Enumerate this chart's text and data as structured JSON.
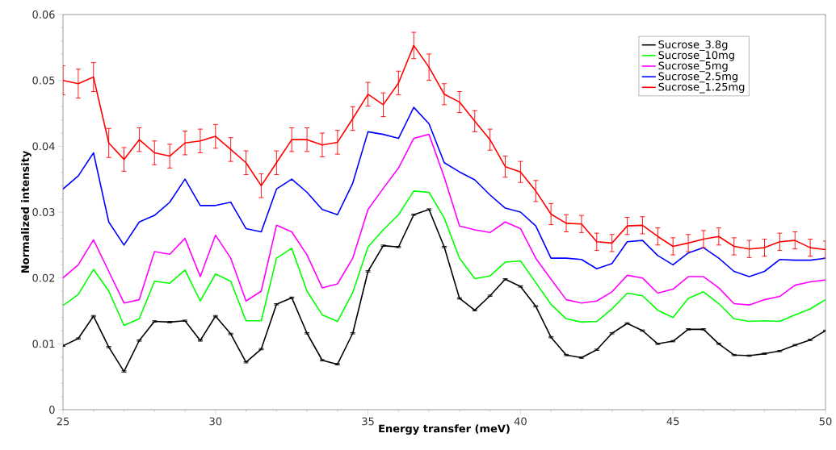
{
  "chart_data": {
    "type": "line",
    "xlabel": "Energy transfer (meV)",
    "ylabel": "Normalized intensity",
    "x": [
      25,
      25.5,
      26,
      26.5,
      27,
      27.5,
      28,
      28.5,
      29,
      29.5,
      30,
      30.5,
      31,
      31.5,
      32,
      32.5,
      33,
      33.5,
      34,
      34.5,
      35,
      35.5,
      36,
      36.5,
      37,
      37.5,
      38,
      38.5,
      39,
      39.5,
      40,
      40.5,
      41,
      41.5,
      42,
      42.5,
      43,
      43.5,
      44,
      44.5,
      45,
      45.5,
      46,
      46.5,
      47,
      47.5,
      48,
      48.5,
      49,
      49.5,
      50
    ],
    "xlim": [
      25,
      50
    ],
    "xticks": [
      25,
      30,
      35,
      40,
      45,
      50
    ],
    "ylim": [
      0,
      0.06
    ],
    "yticks": [
      0,
      0.01,
      0.02,
      0.03,
      0.04,
      0.05,
      0.06
    ],
    "grid": false,
    "legend": "top right",
    "marker": "none",
    "line_style": "solid",
    "series": [
      {
        "name": "Sucrose_3.8g",
        "color": "#000000",
        "values": [
          0.0097,
          0.0108,
          0.0142,
          0.0095,
          0.0058,
          0.0105,
          0.0134,
          0.0133,
          0.0135,
          0.0105,
          0.0142,
          0.0115,
          0.0072,
          0.0092,
          0.016,
          0.017,
          0.0116,
          0.0075,
          0.0069,
          0.0116,
          0.021,
          0.0249,
          0.0247,
          0.0296,
          0.0304,
          0.0247,
          0.0169,
          0.0151,
          0.0173,
          0.0198,
          0.0187,
          0.0157,
          0.011,
          0.0083,
          0.0079,
          0.0091,
          0.0116,
          0.0131,
          0.012,
          0.01,
          0.0104,
          0.0122,
          0.0122,
          0.01,
          0.0083,
          0.0082,
          0.0085,
          0.0089,
          0.0098,
          0.0106,
          0.012
        ],
        "errors": [
          0.0001,
          0.0001,
          0.0001,
          0.0001,
          0.0001,
          0.0001,
          0.0001,
          0.0001,
          0.0001,
          0.0001,
          0.0001,
          0.0001,
          0.0001,
          0.0001,
          0.0001,
          0.0001,
          0.0001,
          0.0001,
          0.0001,
          0.0001,
          0.0001,
          0.0001,
          0.0001,
          0.0001,
          0.0001,
          0.0001,
          0.0001,
          0.0001,
          0.0001,
          0.0001,
          0.0001,
          0.0001,
          0.0001,
          0.0001,
          0.0001,
          0.0001,
          0.0001,
          0.0001,
          0.0001,
          0.0001,
          0.0001,
          0.0001,
          0.0001,
          0.0001,
          0.0001,
          0.0001,
          0.0001,
          0.0001,
          0.0001,
          0.0001,
          0.0001
        ]
      },
      {
        "name": "Sucrose_10mg",
        "color": "#00ff00",
        "values": [
          0.0158,
          0.0175,
          0.0213,
          0.018,
          0.0128,
          0.0138,
          0.0195,
          0.0192,
          0.0212,
          0.0165,
          0.0206,
          0.0195,
          0.0135,
          0.0135,
          0.023,
          0.0245,
          0.018,
          0.0144,
          0.0134,
          0.0178,
          0.0247,
          0.0273,
          0.0296,
          0.0332,
          0.033,
          0.0291,
          0.023,
          0.0199,
          0.0203,
          0.0224,
          0.0226,
          0.0193,
          0.016,
          0.0138,
          0.0133,
          0.0134,
          0.0153,
          0.0177,
          0.0173,
          0.0151,
          0.014,
          0.0169,
          0.0179,
          0.0161,
          0.0138,
          0.0134,
          0.0135,
          0.0134,
          0.0144,
          0.0153,
          0.0167
        ]
      },
      {
        "name": "Sucrose_5mg",
        "color": "#ff00ff",
        "values": [
          0.02,
          0.022,
          0.0258,
          0.021,
          0.0162,
          0.0167,
          0.024,
          0.0236,
          0.026,
          0.0202,
          0.0265,
          0.023,
          0.0165,
          0.018,
          0.028,
          0.027,
          0.0235,
          0.0185,
          0.0191,
          0.023,
          0.0304,
          0.0336,
          0.0367,
          0.0412,
          0.0418,
          0.0353,
          0.0279,
          0.0273,
          0.0269,
          0.0285,
          0.0275,
          0.023,
          0.0198,
          0.0167,
          0.0162,
          0.0165,
          0.0179,
          0.0204,
          0.02,
          0.0177,
          0.0183,
          0.0202,
          0.0202,
          0.0185,
          0.0161,
          0.0159,
          0.0167,
          0.0172,
          0.0189,
          0.0194,
          0.0197
        ]
      },
      {
        "name": "Sucrose_2.5mg",
        "color": "#0000ff",
        "values": [
          0.0335,
          0.0355,
          0.039,
          0.0285,
          0.025,
          0.0285,
          0.0295,
          0.0315,
          0.035,
          0.031,
          0.031,
          0.0315,
          0.0275,
          0.027,
          0.0335,
          0.035,
          0.033,
          0.0304,
          0.0296,
          0.0344,
          0.0422,
          0.0418,
          0.0412,
          0.0459,
          0.0434,
          0.0375,
          0.0361,
          0.0349,
          0.0326,
          0.0306,
          0.03,
          0.0279,
          0.023,
          0.023,
          0.0228,
          0.0214,
          0.0222,
          0.0255,
          0.0257,
          0.0234,
          0.022,
          0.0238,
          0.0246,
          0.023,
          0.021,
          0.0202,
          0.021,
          0.0228,
          0.0227,
          0.0227,
          0.023
        ]
      },
      {
        "name": "Sucrose_1.25mg",
        "color": "#ff0000",
        "values": [
          0.05,
          0.0495,
          0.0505,
          0.0405,
          0.038,
          0.041,
          0.039,
          0.0385,
          0.0405,
          0.0408,
          0.0415,
          0.0395,
          0.0375,
          0.034,
          0.0375,
          0.041,
          0.041,
          0.0402,
          0.0406,
          0.0442,
          0.0479,
          0.0463,
          0.0496,
          0.0553,
          0.052,
          0.0479,
          0.0467,
          0.0438,
          0.041,
          0.0369,
          0.0361,
          0.0332,
          0.0297,
          0.0283,
          0.0282,
          0.0255,
          0.0253,
          0.0279,
          0.028,
          0.0263,
          0.0248,
          0.0253,
          0.0259,
          0.0263,
          0.0248,
          0.0244,
          0.0246,
          0.0255,
          0.0257,
          0.0246,
          0.0243
        ],
        "errors": [
          0.0022,
          0.0022,
          0.0022,
          0.0022,
          0.0018,
          0.0018,
          0.0018,
          0.0018,
          0.0018,
          0.0018,
          0.0018,
          0.0018,
          0.0018,
          0.0018,
          0.0018,
          0.0018,
          0.0018,
          0.0018,
          0.0018,
          0.0018,
          0.0018,
          0.0018,
          0.0018,
          0.002,
          0.002,
          0.0016,
          0.0016,
          0.0016,
          0.0016,
          0.0016,
          0.0016,
          0.0016,
          0.0016,
          0.0013,
          0.0013,
          0.0013,
          0.0013,
          0.0013,
          0.0013,
          0.0013,
          0.0013,
          0.0013,
          0.0013,
          0.0013,
          0.0013,
          0.0013,
          0.0013,
          0.0013,
          0.0013,
          0.0013,
          0.0013
        ]
      }
    ]
  }
}
